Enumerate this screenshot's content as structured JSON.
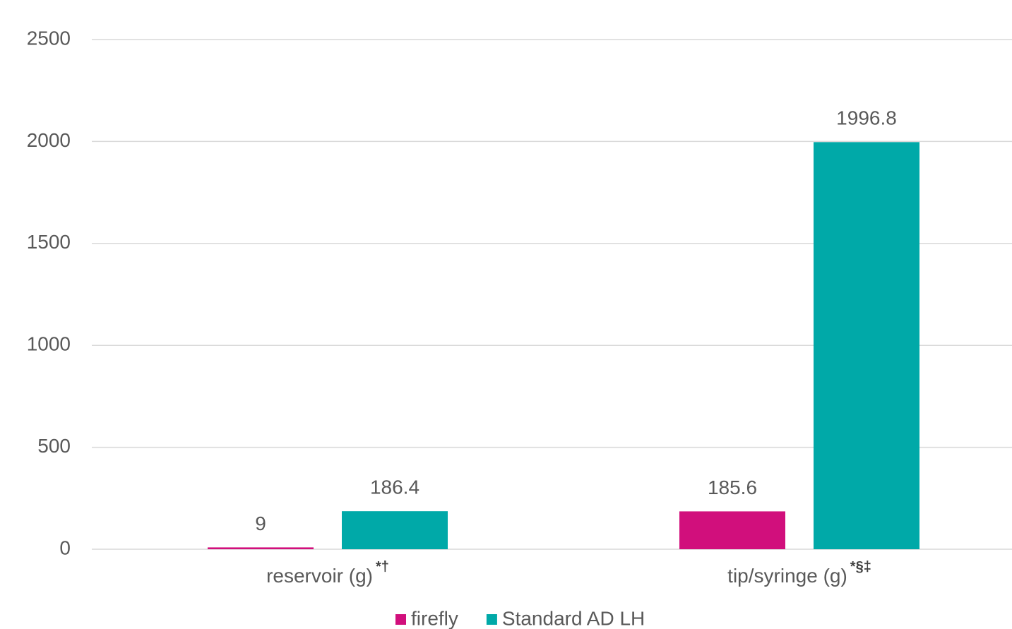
{
  "chart_data": {
    "type": "bar",
    "categories": [
      "reservoir (g)",
      "tip/syringe (g)"
    ],
    "category_superscripts": [
      "*†",
      "*§‡"
    ],
    "series": [
      {
        "name": "firefly",
        "color": "#d10f7c",
        "values": [
          9,
          185.6
        ]
      },
      {
        "name": "Standard AD LH",
        "color": "#00a9a8",
        "values": [
          186.4,
          1996.8
        ]
      }
    ],
    "ylim": [
      0,
      2500
    ],
    "yticks": [
      0,
      500,
      1000,
      1500,
      2000,
      2500
    ],
    "grid": true,
    "legend": "bottom"
  }
}
